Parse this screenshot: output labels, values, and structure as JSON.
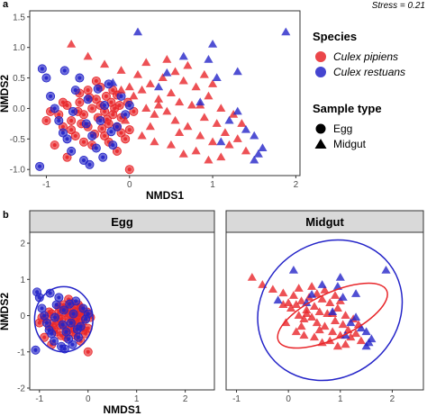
{
  "colors": {
    "pipiens": "#e8262a",
    "restuans": "#2424c8",
    "strip_bg": "#d9d9d9"
  },
  "chart_data": [
    {
      "panel": "a",
      "type": "scatter",
      "xlabel": "NMDS1",
      "ylabel": "NMDS2",
      "xlim": [
        -1.2,
        2.05
      ],
      "ylim": [
        -1.1,
        1.6
      ],
      "xticks": [
        -1,
        0,
        1,
        2
      ],
      "yticks": [
        -1.0,
        -0.5,
        0.0,
        0.5,
        1.0,
        1.5
      ],
      "stress_label": "Stress = 0.21",
      "legend": {
        "species_title": "Species",
        "species": [
          "Culex pipiens",
          "Culex restuans"
        ],
        "sample_title": "Sample type",
        "samples": [
          "Egg",
          "Midgut"
        ]
      },
      "series": [
        {
          "species": "Culex pipiens",
          "sample": "Egg",
          "points": [
            [
              -0.95,
              -0.05
            ],
            [
              -0.85,
              -0.1
            ],
            [
              -0.75,
              0.05
            ],
            [
              -0.7,
              -0.2
            ],
            [
              -0.6,
              0.1
            ],
            [
              -0.55,
              -0.1
            ],
            [
              -0.5,
              -0.3
            ],
            [
              -0.45,
              0.0
            ],
            [
              -0.4,
              0.15
            ],
            [
              -0.38,
              -0.15
            ],
            [
              -0.35,
              0.05
            ],
            [
              -0.3,
              -0.05
            ],
            [
              -0.28,
              0.2
            ],
            [
              -0.25,
              -0.25
            ],
            [
              -0.22,
              0.1
            ],
            [
              -0.2,
              -0.1
            ],
            [
              -0.18,
              0.0
            ],
            [
              -0.15,
              -0.3
            ],
            [
              -0.12,
              0.05
            ],
            [
              -0.1,
              -0.15
            ],
            [
              -0.65,
              -0.45
            ],
            [
              -0.55,
              -0.55
            ],
            [
              -0.45,
              -0.6
            ],
            [
              -0.3,
              -0.45
            ],
            [
              -0.25,
              -0.55
            ],
            [
              -0.1,
              -0.4
            ],
            [
              -0.05,
              -0.5
            ],
            [
              0.0,
              -0.35
            ],
            [
              -0.6,
              0.25
            ],
            [
              -0.5,
              0.3
            ],
            [
              -0.35,
              0.35
            ],
            [
              -0.2,
              0.3
            ],
            [
              -0.7,
              -0.35
            ],
            [
              -0.8,
              -0.3
            ],
            [
              -1.0,
              -0.2
            ],
            [
              -0.9,
              -0.6
            ],
            [
              -0.75,
              -0.8
            ],
            [
              -0.15,
              -0.7
            ],
            [
              0.0,
              -1.0
            ],
            [
              -0.4,
              0.45
            ],
            [
              -0.02,
              0.1
            ],
            [
              0.05,
              -0.05
            ],
            [
              -0.62,
              -0.05
            ],
            [
              -0.48,
              0.18
            ],
            [
              -0.33,
              -0.33
            ],
            [
              -0.8,
              0.1
            ],
            [
              -0.58,
              -0.25
            ],
            [
              -0.27,
              -0.18
            ],
            [
              -0.42,
              -0.42
            ],
            [
              -0.15,
              0.22
            ]
          ]
        },
        {
          "species": "Culex restuans",
          "sample": "Egg",
          "points": [
            [
              -1.05,
              0.65
            ],
            [
              -1.0,
              0.5
            ],
            [
              -0.95,
              0.2
            ],
            [
              -0.9,
              0.0
            ],
            [
              -0.85,
              -0.2
            ],
            [
              -0.8,
              -0.4
            ],
            [
              -0.75,
              -0.5
            ],
            [
              -0.7,
              -0.7
            ],
            [
              -0.65,
              0.3
            ],
            [
              -0.6,
              0.5
            ],
            [
              -0.55,
              -0.85
            ],
            [
              -0.5,
              0.15
            ],
            [
              -0.45,
              -0.45
            ],
            [
              -0.4,
              -0.65
            ],
            [
              -0.35,
              -0.2
            ],
            [
              -0.3,
              0.05
            ],
            [
              -0.25,
              0.4
            ],
            [
              -0.2,
              -0.6
            ],
            [
              -0.15,
              -0.3
            ],
            [
              -0.1,
              0.2
            ],
            [
              -0.05,
              -0.1
            ],
            [
              0.0,
              0.05
            ],
            [
              -0.78,
              0.62
            ],
            [
              -0.68,
              -0.05
            ],
            [
              -0.52,
              -0.25
            ],
            [
              -0.38,
              0.32
            ],
            [
              -0.22,
              -0.38
            ],
            [
              -0.48,
              -0.92
            ],
            [
              -1.08,
              -0.95
            ],
            [
              -0.32,
              -0.8
            ]
          ]
        },
        {
          "species": "Culex pipiens",
          "sample": "Midgut",
          "points": [
            [
              -0.7,
              1.05
            ],
            [
              -0.5,
              0.85
            ],
            [
              -0.3,
              0.72
            ],
            [
              -0.1,
              0.62
            ],
            [
              0.0,
              0.35
            ],
            [
              0.05,
              0.2
            ],
            [
              0.1,
              0.55
            ],
            [
              0.15,
              0.3
            ],
            [
              0.2,
              0.0
            ],
            [
              0.25,
              0.4
            ],
            [
              0.3,
              -0.1
            ],
            [
              0.35,
              0.15
            ],
            [
              0.4,
              0.5
            ],
            [
              0.45,
              -0.05
            ],
            [
              0.5,
              0.25
            ],
            [
              0.55,
              -0.2
            ],
            [
              0.6,
              0.1
            ],
            [
              0.65,
              0.45
            ],
            [
              0.7,
              -0.3
            ],
            [
              0.75,
              0.05
            ],
            [
              0.8,
              0.35
            ],
            [
              0.85,
              -0.45
            ],
            [
              0.9,
              -0.15
            ],
            [
              0.95,
              0.2
            ],
            [
              1.0,
              -0.55
            ],
            [
              1.05,
              -0.25
            ],
            [
              1.1,
              0.0
            ],
            [
              1.15,
              -0.4
            ],
            [
              1.2,
              -0.6
            ],
            [
              1.25,
              -0.1
            ],
            [
              1.3,
              -0.5
            ],
            [
              1.4,
              -0.7
            ],
            [
              0.15,
              -0.45
            ],
            [
              0.3,
              -0.55
            ],
            [
              0.5,
              -0.6
            ],
            [
              0.65,
              -0.75
            ],
            [
              0.8,
              -0.7
            ],
            [
              0.95,
              -0.85
            ],
            [
              1.1,
              -0.8
            ],
            [
              -0.1,
              0.3
            ],
            [
              0.2,
              0.75
            ],
            [
              0.45,
              0.8
            ],
            [
              0.7,
              0.7
            ],
            [
              0.9,
              0.55
            ],
            [
              1.0,
              0.4
            ],
            [
              0.55,
              0.6
            ],
            [
              0.35,
              0.05
            ],
            [
              -0.05,
              -0.2
            ],
            [
              0.25,
              -0.3
            ],
            [
              1.35,
              -0.25
            ],
            [
              0.6,
              -0.4
            ],
            [
              0.85,
              0.05
            ]
          ]
        },
        {
          "species": "Culex restuans",
          "sample": "Midgut",
          "points": [
            [
              0.1,
              1.25
            ],
            [
              -0.2,
              0.42
            ],
            [
              0.45,
              0.58
            ],
            [
              0.65,
              0.85
            ],
            [
              0.95,
              0.8
            ],
            [
              1.0,
              1.05
            ],
            [
              1.3,
              0.6
            ],
            [
              1.5,
              -0.45
            ],
            [
              1.55,
              -0.75
            ],
            [
              1.5,
              -0.85
            ],
            [
              1.4,
              -0.35
            ],
            [
              1.2,
              -0.2
            ],
            [
              1.1,
              -0.55
            ],
            [
              1.3,
              -0.05
            ],
            [
              0.85,
              0.1
            ],
            [
              1.88,
              1.25
            ],
            [
              1.05,
              0.5
            ],
            [
              0.35,
              0.35
            ],
            [
              1.6,
              -0.65
            ]
          ]
        }
      ]
    },
    {
      "panel": "b",
      "type": "scatter",
      "xlabel": "NMDS1",
      "ylabel": "NMDS2",
      "xlim": [
        -1.2,
        2.6
      ],
      "ylim": [
        -2.05,
        2.3
      ],
      "xticks": [
        -1,
        0,
        1,
        2
      ],
      "yticks": [
        -2,
        -1,
        0,
        1,
        2
      ],
      "facets": [
        "Egg",
        "Midgut"
      ],
      "ellipses": {
        "Egg": {
          "Culex restuans": {
            "center": [
              -0.5,
              -0.1
            ],
            "rx": 0.6,
            "ry": 0.9,
            "angle": 0
          }
        },
        "Midgut": {
          "Culex pipiens": {
            "center": [
              0.85,
              0.0
            ],
            "rx": 1.15,
            "ry": 0.62,
            "angle": -25
          },
          "Culex restuans": {
            "center": [
              0.8,
              0.15
            ],
            "rx": 1.45,
            "ry": 1.85,
            "angle": -38
          }
        }
      }
    }
  ]
}
